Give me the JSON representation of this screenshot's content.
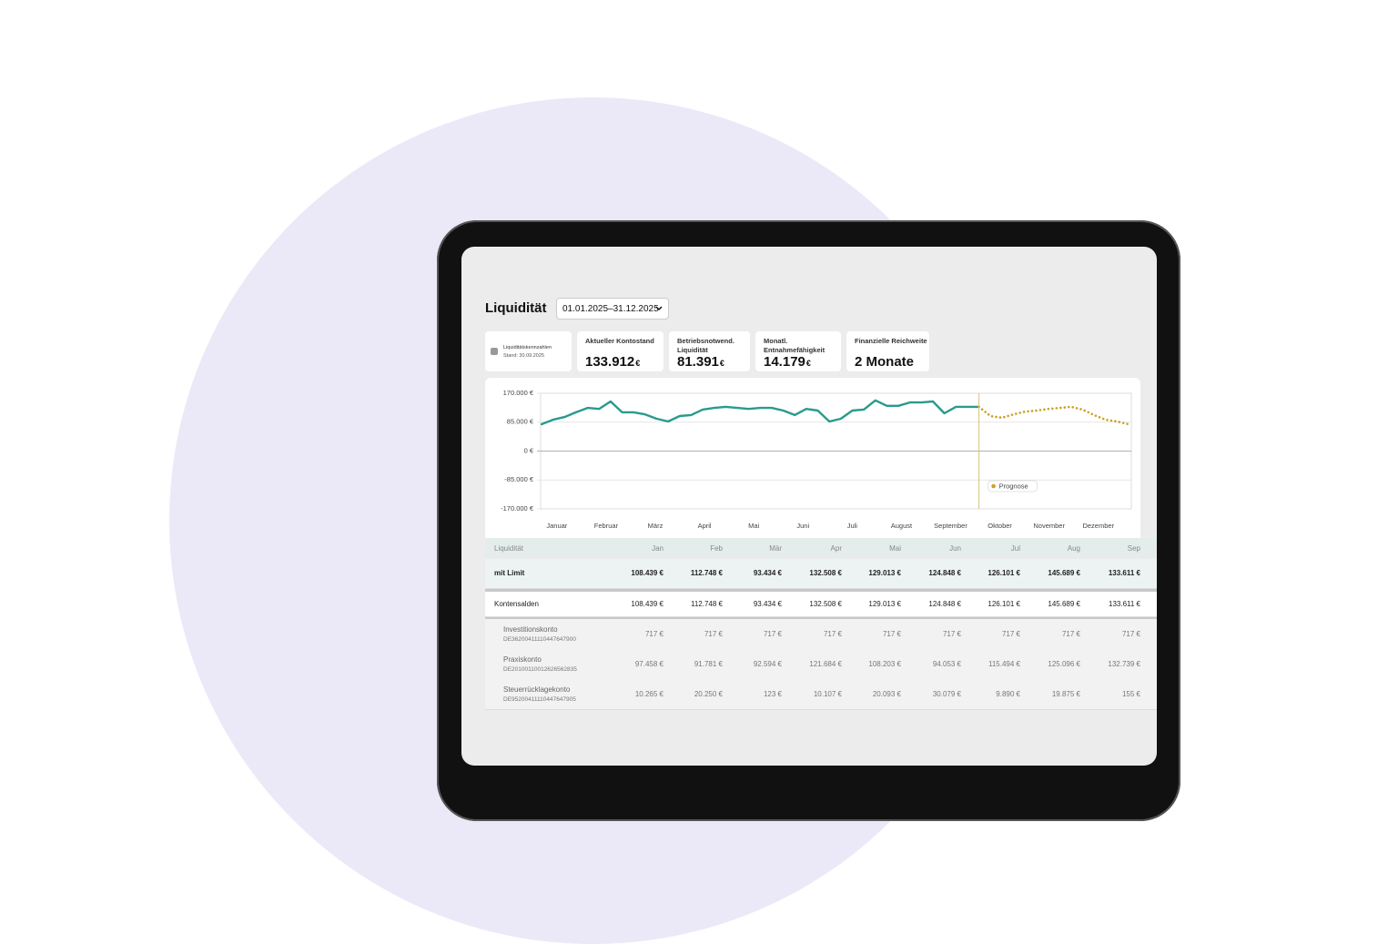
{
  "header": {
    "title": "Liquidität",
    "date_range": "01.01.2025–31.12.2025"
  },
  "kpis": {
    "info": {
      "title": "Liquiditätskennzahlen",
      "subtitle": "Stand: 30.09.2025"
    },
    "cards": [
      {
        "label": "Aktueller Kontostand",
        "value": "133.912",
        "unit": "€"
      },
      {
        "label": "Betriebsnotwend. Liquidität",
        "value": "81.391",
        "unit": "€"
      },
      {
        "label": "Monatl. Entnahmefähigkeit",
        "value": "14.179",
        "unit": "€"
      },
      {
        "label": "Finanzielle Reichweite",
        "value": "2 Monate"
      }
    ]
  },
  "chart": {
    "type": "line",
    "x_labels": [
      "Januar",
      "Februar",
      "März",
      "April",
      "Mai",
      "Juni",
      "Juli",
      "August",
      "September",
      "Oktober",
      "November",
      "Dezember"
    ],
    "ylim": [
      -170000,
      170000
    ],
    "yticks": [
      {
        "value": -170000,
        "label": "-170.000 €"
      },
      {
        "value": -85000,
        "label": "-85.000 €"
      },
      {
        "value": 0,
        "label": "0 €"
      },
      {
        "value": 85000,
        "label": "85.000 €"
      },
      {
        "value": 170000,
        "label": "170.000 €"
      }
    ],
    "grid": true,
    "series": [
      {
        "color": "#2a9a8c",
        "values": [
          79000,
          92000,
          100000,
          114000,
          127000,
          124000,
          146000,
          114000,
          114000,
          108000,
          95000,
          87000,
          103000,
          106000,
          122000,
          127000,
          130000,
          127000,
          124000,
          127000,
          127000,
          119000,
          106000,
          124000,
          119000,
          87000,
          95000,
          119000,
          122000,
          149000,
          133000,
          133000,
          143000,
          143000,
          146000,
          111000,
          130000,
          130000,
          130000,
          null,
          null,
          null,
          null,
          null,
          null,
          null,
          null,
          null,
          null,
          null,
          null,
          null
        ]
      },
      {
        "name": "Prognose",
        "color": "#c9a227",
        "values": [
          null,
          null,
          null,
          null,
          null,
          null,
          null,
          null,
          null,
          null,
          null,
          null,
          null,
          null,
          null,
          null,
          null,
          null,
          null,
          null,
          null,
          null,
          null,
          null,
          null,
          null,
          null,
          null,
          null,
          null,
          null,
          null,
          null,
          null,
          null,
          null,
          null,
          null,
          130000,
          103000,
          98000,
          108000,
          116000,
          119000,
          124000,
          127000,
          130000,
          122000,
          106000,
          92000,
          87000,
          79000
        ]
      }
    ]
  },
  "table": {
    "columns": [
      "Liquidität",
      "Jan",
      "Feb",
      "Mär",
      "Apr",
      "Mai",
      "Jun",
      "Jul",
      "Aug",
      "Sep"
    ],
    "rows": [
      {
        "label": "mit Limit",
        "values": [
          "108.439 €",
          "112.748 €",
          "93.434 €",
          "132.508 €",
          "129.013 €",
          "124.848 €",
          "126.101 €",
          "145.689 €",
          "133.611 €"
        ]
      },
      {
        "label": "Kontensalden",
        "values": [
          "108.439 €",
          "112.748 €",
          "93.434 €",
          "132.508 €",
          "129.013 €",
          "124.848 €",
          "126.101 €",
          "145.689 €",
          "133.611 €"
        ]
      },
      {
        "label": "Investitionskonto",
        "iban": "DE36200411110447647900",
        "values": [
          "717 €",
          "717 €",
          "717 €",
          "717 €",
          "717 €",
          "717 €",
          "717 €",
          "717 €",
          "717 €"
        ]
      },
      {
        "label": "Praxiskonto",
        "iban": "DE20100110012626562835",
        "values": [
          "97.458 €",
          "91.781 €",
          "92.594 €",
          "121.684 €",
          "108.203 €",
          "94.053 €",
          "115.494 €",
          "125.096 €",
          "132.739 €"
        ]
      },
      {
        "label": "Steuerrücklagekonto",
        "iban": "DE95200411110447647905",
        "values": [
          "10.265 €",
          "20.250 €",
          "123 €",
          "10.107 €",
          "20.093 €",
          "30.079 €",
          "9.890 €",
          "19.875 €",
          "155 €"
        ]
      }
    ]
  }
}
